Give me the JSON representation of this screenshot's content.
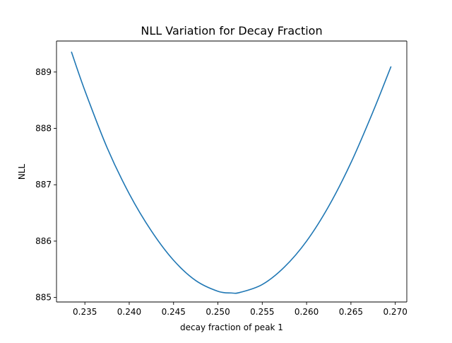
{
  "chart_data": {
    "type": "line",
    "title": "NLL Variation for Decay Fraction",
    "xlabel": "decay fraction of peak 1",
    "ylabel": "NLL",
    "xlim": [
      0.2318,
      0.2713
    ],
    "ylim": [
      884.92,
      889.55
    ],
    "x_ticks": [
      0.235,
      0.24,
      0.245,
      0.25,
      0.255,
      0.26,
      0.265,
      0.27
    ],
    "x_tick_labels": [
      "0.235",
      "0.240",
      "0.245",
      "0.250",
      "0.255",
      "0.260",
      "0.265",
      "0.270"
    ],
    "y_ticks": [
      885,
      886,
      887,
      888,
      889
    ],
    "y_tick_labels": [
      "885",
      "886",
      "887",
      "888",
      "889"
    ],
    "grid": false,
    "legend": "none",
    "series_color": "#1f77b4",
    "series": [
      {
        "x": [
          0.2335,
          0.235,
          0.2375,
          0.24,
          0.2425,
          0.245,
          0.2475,
          0.25,
          0.2515,
          0.2525,
          0.255,
          0.2575,
          0.26,
          0.2625,
          0.265,
          0.2675,
          0.2695
        ],
        "y": [
          889.35,
          888.67,
          887.66,
          886.84,
          886.18,
          885.66,
          885.3,
          885.11,
          885.08,
          885.09,
          885.23,
          885.54,
          886.0,
          886.62,
          887.39,
          888.3,
          889.09
        ]
      }
    ]
  }
}
